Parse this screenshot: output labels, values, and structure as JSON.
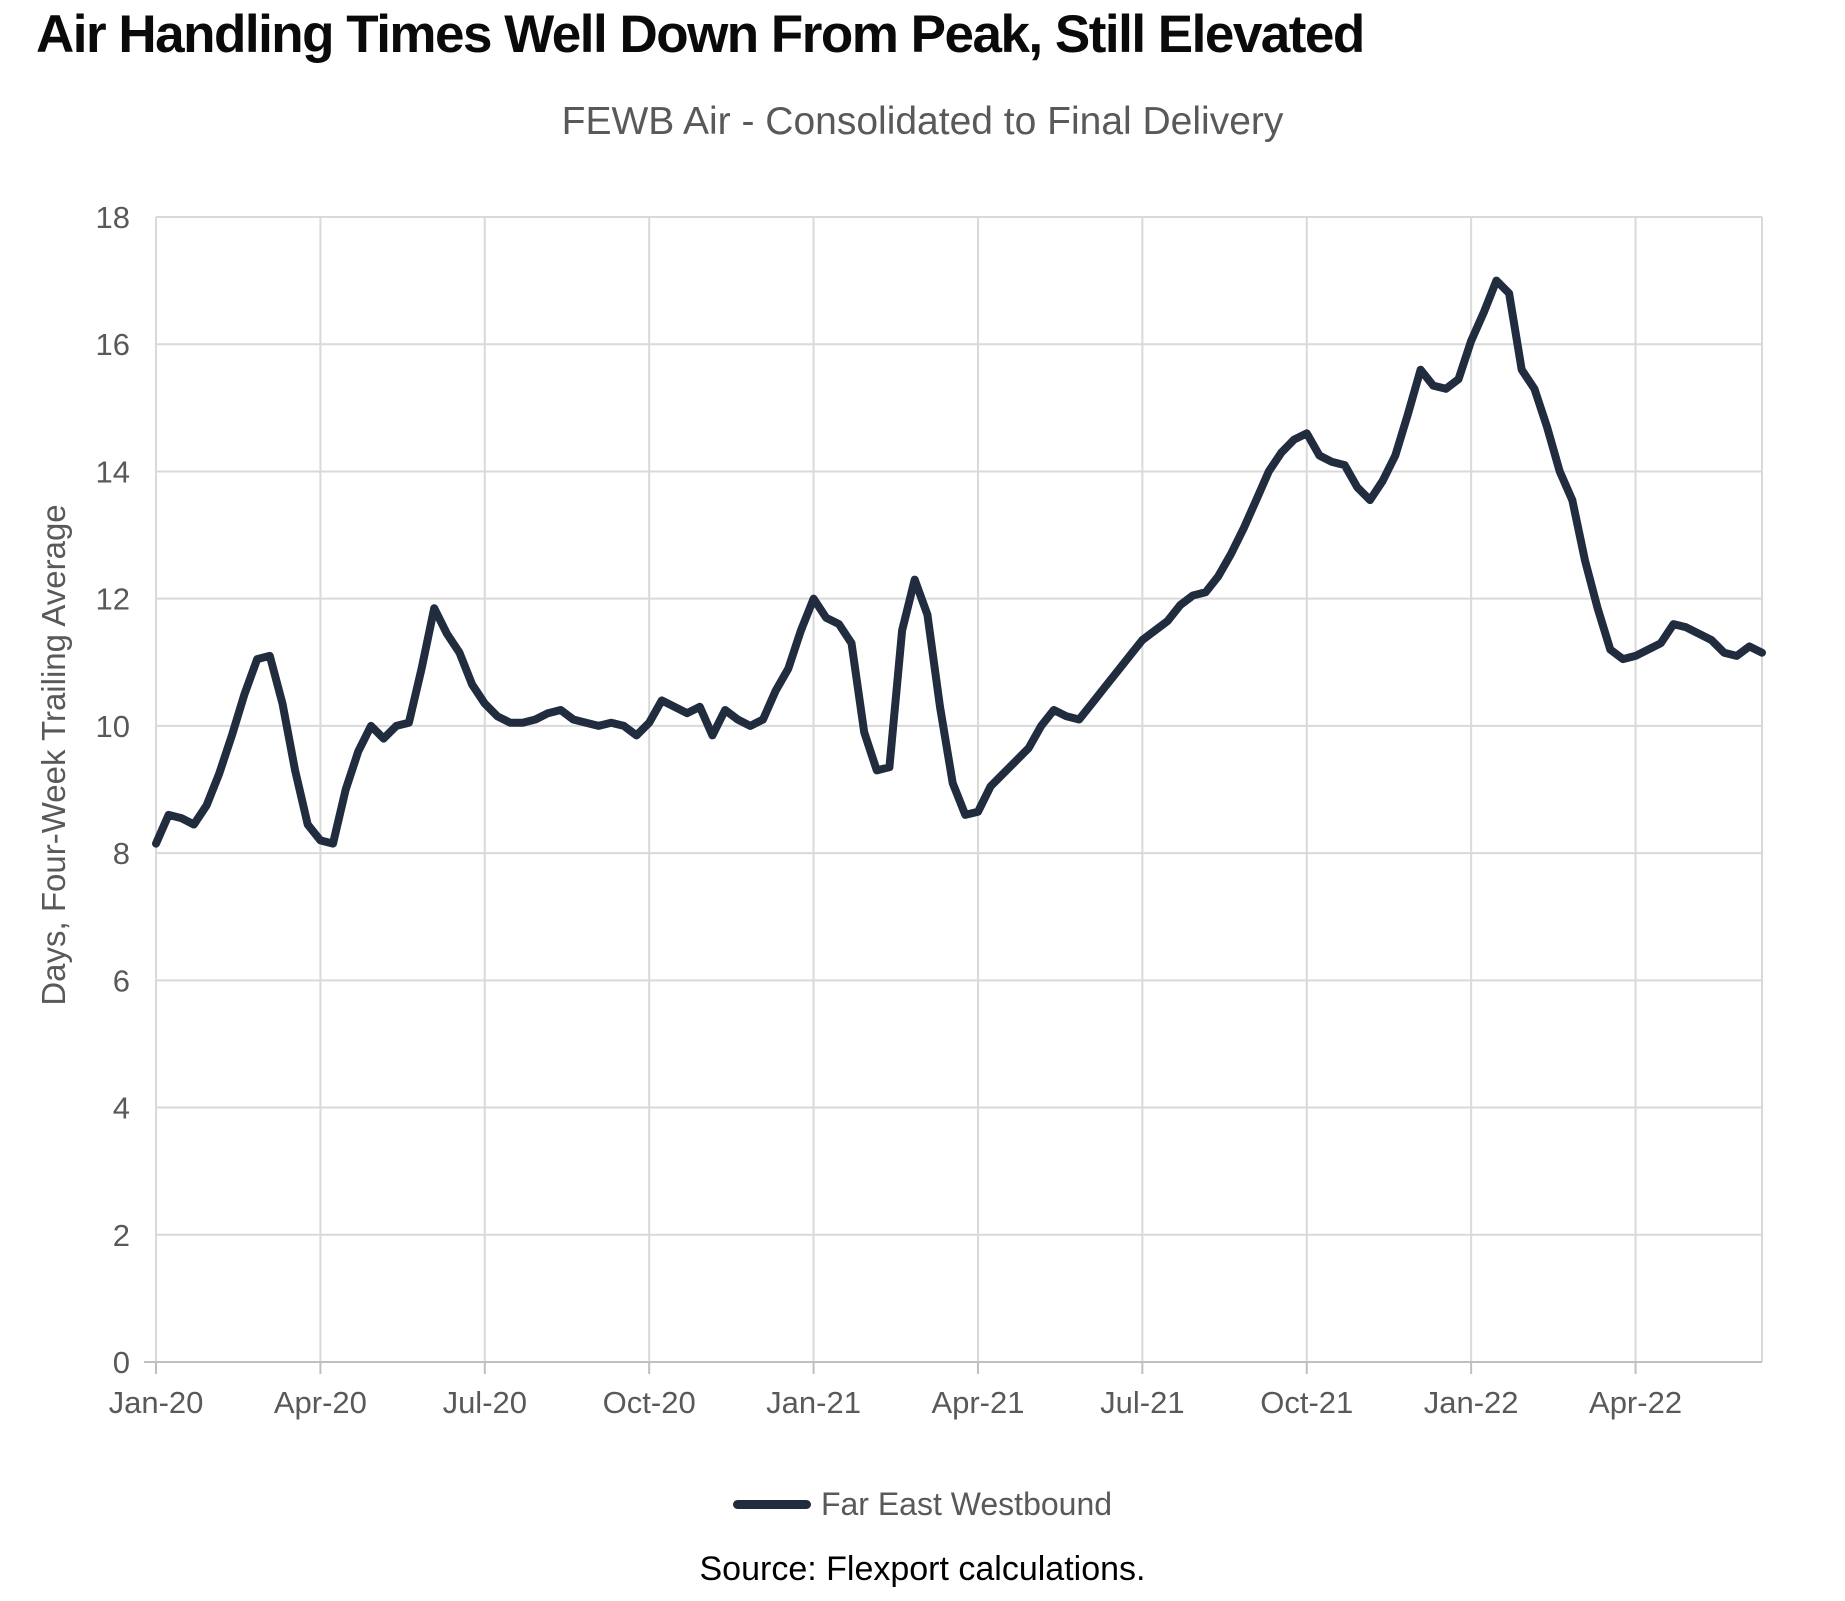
{
  "header": {
    "title": "Air Handling Times Well Down From Peak, Still Elevated",
    "subtitle": "FEWB Air - Consolidated to Final Delivery"
  },
  "colors": {
    "line": "#212c3f",
    "gridline": "#d9d9d9",
    "axis": "#bfbfbf",
    "tick_text": "#595959",
    "title_text": "#0a0a0a",
    "subtitle_text": "#595959"
  },
  "legend": {
    "items": [
      {
        "label": "Far East Westbound",
        "color": "#212c3f"
      }
    ]
  },
  "footer": {
    "source": "Source: Flexport calculations."
  },
  "chart_data": {
    "type": "line",
    "title": "Air Handling Times Well Down From Peak, Still Elevated",
    "subtitle": "FEWB Air - Consolidated to Final Delivery",
    "xlabel": "",
    "ylabel": "Days, Four-Week Trailing Average",
    "ylim": [
      0,
      18
    ],
    "y_ticks": [
      0,
      2,
      4,
      6,
      8,
      10,
      12,
      14,
      16,
      18
    ],
    "grid": true,
    "legend_position": "bottom",
    "x_frequency": "weekly",
    "x_tick_indices": [
      0,
      13,
      26,
      39,
      52,
      65,
      78,
      91,
      104,
      117
    ],
    "x_tick_labels": [
      "Jan-20",
      "Apr-20",
      "Jul-20",
      "Oct-20",
      "Jan-21",
      "Apr-21",
      "Jul-21",
      "Oct-21",
      "Jan-22",
      "Apr-22"
    ],
    "series": [
      {
        "name": "Far East Westbound",
        "values": [
          8.15,
          8.6,
          8.55,
          8.45,
          8.75,
          9.25,
          9.85,
          10.5,
          11.05,
          11.1,
          10.35,
          9.3,
          8.45,
          8.2,
          8.15,
          9.0,
          9.6,
          10.0,
          9.8,
          10.0,
          10.05,
          10.9,
          11.85,
          11.45,
          11.15,
          10.65,
          10.35,
          10.15,
          10.05,
          10.05,
          10.1,
          10.2,
          10.25,
          10.1,
          10.05,
          10.0,
          10.05,
          10.0,
          9.85,
          10.05,
          10.4,
          10.3,
          10.2,
          10.3,
          9.85,
          10.25,
          10.1,
          10.0,
          10.1,
          10.55,
          10.9,
          11.5,
          12.0,
          11.7,
          11.6,
          11.3,
          9.9,
          9.3,
          9.35,
          11.5,
          12.3,
          11.75,
          10.3,
          9.1,
          8.6,
          8.65,
          9.05,
          9.25,
          9.45,
          9.65,
          10.0,
          10.25,
          10.15,
          10.1,
          10.35,
          10.6,
          10.85,
          11.1,
          11.35,
          11.5,
          11.65,
          11.9,
          12.05,
          12.1,
          12.35,
          12.7,
          13.1,
          13.55,
          14.0,
          14.3,
          14.5,
          14.6,
          14.25,
          14.15,
          14.1,
          13.75,
          13.55,
          13.85,
          14.25,
          14.9,
          15.6,
          15.35,
          15.3,
          15.45,
          16.05,
          16.5,
          17.0,
          16.8,
          15.6,
          15.3,
          14.7,
          14.0,
          13.55,
          12.6,
          11.85,
          11.2,
          11.05,
          11.1,
          11.2,
          11.3,
          11.6,
          11.55,
          11.45,
          11.35,
          11.15,
          11.1,
          11.25,
          11.15
        ]
      }
    ]
  }
}
